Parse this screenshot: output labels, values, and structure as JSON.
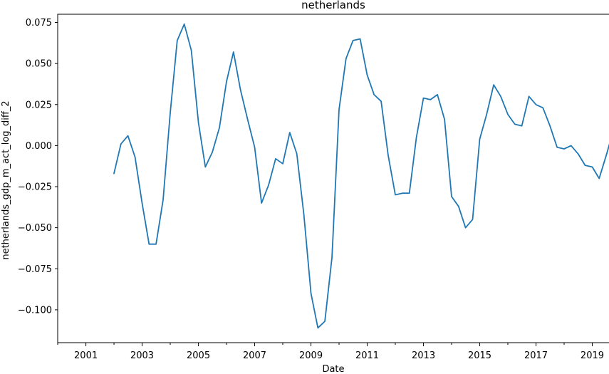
{
  "chart_data": {
    "type": "line",
    "title": "netherlands",
    "xlabel": "Date",
    "ylabel": "netherlands_gdp_m_act_log_diff_2",
    "grid": false,
    "legend": "none",
    "line_color": "#1f77b4",
    "xlim": [
      "2000-01-01",
      "2019-10-01"
    ],
    "ylim": [
      -0.12,
      0.08
    ],
    "x_ticks": [
      "2001",
      "2003",
      "2005",
      "2007",
      "2009",
      "2011",
      "2013",
      "2015",
      "2017",
      "2019"
    ],
    "y_ticks": [
      "0.075",
      "0.050",
      "0.025",
      "0.000",
      "−0.025",
      "−0.050",
      "−0.075",
      "−0.100"
    ],
    "x": [
      "2002-01-01",
      "2002-04-01",
      "2002-07-01",
      "2002-10-01",
      "2003-01-01",
      "2003-04-01",
      "2003-07-01",
      "2003-10-01",
      "2004-01-01",
      "2004-04-01",
      "2004-07-01",
      "2004-10-01",
      "2005-01-01",
      "2005-04-01",
      "2005-07-01",
      "2005-10-01",
      "2006-01-01",
      "2006-04-01",
      "2006-07-01",
      "2006-10-01",
      "2007-01-01",
      "2007-04-01",
      "2007-07-01",
      "2007-10-01",
      "2008-01-01",
      "2008-04-01",
      "2008-07-01",
      "2008-10-01",
      "2009-01-01",
      "2009-04-01",
      "2009-07-01",
      "2009-10-01",
      "2010-01-01",
      "2010-04-01",
      "2010-07-01",
      "2010-10-01",
      "2011-01-01",
      "2011-04-01",
      "2011-07-01",
      "2011-10-01",
      "2012-01-01",
      "2012-04-01",
      "2012-07-01",
      "2012-10-01",
      "2013-01-01",
      "2013-04-01",
      "2013-07-01",
      "2013-10-01",
      "2014-01-01",
      "2014-04-01",
      "2014-07-01",
      "2014-10-01",
      "2015-01-01",
      "2015-04-01",
      "2015-07-01",
      "2015-10-01",
      "2016-01-01",
      "2016-04-01",
      "2016-07-01",
      "2016-10-01",
      "2017-01-01",
      "2017-04-01",
      "2017-07-01",
      "2017-10-01",
      "2018-01-01",
      "2018-04-01",
      "2018-07-01",
      "2018-10-01",
      "2019-01-01",
      "2019-04-01",
      "2019-07-01",
      "2019-10-01"
    ],
    "series": [
      {
        "values": [
          -0.017,
          0.001,
          0.006,
          -0.007,
          -0.035,
          -0.06,
          -0.06,
          -0.033,
          0.02,
          0.064,
          0.074,
          0.058,
          0.014,
          -0.013,
          -0.004,
          0.011,
          0.039,
          0.057,
          0.034,
          0.016,
          -0.001,
          -0.035,
          -0.024,
          -0.008,
          -0.011,
          0.008,
          -0.005,
          -0.042,
          -0.09,
          -0.111,
          -0.107,
          -0.068,
          0.022,
          0.053,
          0.064,
          0.065,
          0.043,
          0.031,
          0.027,
          -0.006,
          -0.03,
          -0.029,
          -0.029,
          0.005,
          0.029,
          0.028,
          0.031,
          0.016,
          -0.031,
          -0.037,
          -0.05,
          -0.045,
          0.004,
          0.019,
          0.037,
          0.03,
          0.019,
          0.013,
          0.012,
          0.03,
          0.025,
          0.023,
          0.012,
          -0.001,
          -0.002,
          0.0,
          -0.005,
          -0.012,
          -0.013,
          -0.02,
          -0.006,
          0.009
        ]
      }
    ]
  }
}
